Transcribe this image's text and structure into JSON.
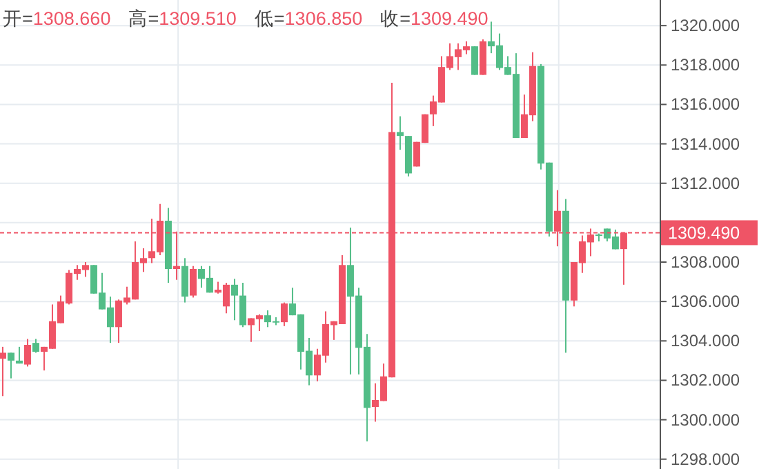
{
  "chart_data": {
    "type": "candlestick",
    "categories": [
      null,
      null,
      null,
      null,
      null,
      null,
      null,
      null,
      null,
      null,
      null,
      null,
      null,
      null,
      null,
      null,
      null,
      null,
      null,
      null,
      null,
      null,
      null,
      null,
      null,
      null,
      null,
      null,
      null,
      null,
      null,
      null,
      null,
      null,
      null,
      null,
      null,
      null,
      null,
      null,
      null,
      null,
      null,
      null,
      null,
      null,
      null,
      null,
      null,
      null,
      null,
      null,
      null,
      null,
      null,
      null,
      null,
      null,
      null,
      null,
      null,
      null,
      null,
      null,
      null,
      null,
      null,
      null,
      null,
      null,
      null,
      null,
      null,
      null,
      null,
      null
    ],
    "ohlc": [
      [
        1303.1,
        1303.7,
        1301.2,
        1303.4
      ],
      [
        1303.4,
        1303.4,
        1302.1,
        1303.0
      ],
      [
        1303.0,
        1303.7,
        1302.85,
        1302.85
      ],
      [
        1302.8,
        1304.1,
        1302.7,
        1303.8
      ],
      [
        1303.9,
        1304.1,
        1303.4,
        1303.45
      ],
      [
        1303.45,
        1303.7,
        1302.5,
        1303.7
      ],
      [
        1303.6,
        1305.85,
        1303.6,
        1305.0
      ],
      [
        1304.9,
        1306.3,
        1304.9,
        1306.0
      ],
      [
        1305.9,
        1307.6,
        1305.85,
        1307.45
      ],
      [
        1307.4,
        1307.85,
        1307.1,
        1307.65
      ],
      [
        1307.6,
        1308.0,
        1307.25,
        1307.85
      ],
      [
        1307.85,
        1307.85,
        1306.4,
        1306.4
      ],
      [
        1306.45,
        1307.45,
        1305.6,
        1305.6
      ],
      [
        1305.7,
        1306.25,
        1303.9,
        1304.7
      ],
      [
        1304.7,
        1306.1,
        1303.9,
        1306.05
      ],
      [
        1305.95,
        1306.75,
        1305.85,
        1306.2
      ],
      [
        1306.1,
        1309.05,
        1306.1,
        1308.0
      ],
      [
        1307.95,
        1308.7,
        1307.5,
        1308.2
      ],
      [
        1308.2,
        1310.2,
        1307.95,
        1308.55
      ],
      [
        1308.5,
        1310.95,
        1308.35,
        1310.1
      ],
      [
        1310.1,
        1310.75,
        1306.95,
        1307.65
      ],
      [
        1307.65,
        1309.55,
        1307.1,
        1307.8
      ],
      [
        1307.8,
        1308.2,
        1305.95,
        1306.25
      ],
      [
        1306.3,
        1307.8,
        1306.2,
        1307.65
      ],
      [
        1307.65,
        1307.8,
        1306.7,
        1307.15
      ],
      [
        1307.2,
        1307.8,
        1306.45,
        1306.45
      ],
      [
        1306.45,
        1307.0,
        1306.4,
        1306.6
      ],
      [
        1305.75,
        1306.95,
        1305.4,
        1306.85
      ],
      [
        1306.85,
        1307.15,
        1305.05,
        1306.3
      ],
      [
        1306.3,
        1306.95,
        1304.7,
        1304.8
      ],
      [
        1304.8,
        1305.15,
        1303.95,
        1305.15
      ],
      [
        1305.1,
        1305.35,
        1304.5,
        1305.3
      ],
      [
        1305.3,
        1305.55,
        1304.7,
        1304.95
      ],
      [
        1305.0,
        1305.2,
        1304.8,
        1304.95
      ],
      [
        1304.95,
        1305.95,
        1304.75,
        1305.9
      ],
      [
        1305.9,
        1306.7,
        1305.3,
        1305.3
      ],
      [
        1305.35,
        1305.35,
        1302.55,
        1303.45
      ],
      [
        1303.5,
        1304.15,
        1301.75,
        1302.25
      ],
      [
        1302.25,
        1303.6,
        1301.95,
        1303.3
      ],
      [
        1303.25,
        1305.5,
        1302.9,
        1304.85
      ],
      [
        1304.8,
        1305.0,
        1304.05,
        1305.0
      ],
      [
        1304.85,
        1308.35,
        1304.85,
        1307.85
      ],
      [
        1307.85,
        1309.75,
        1302.3,
        1306.25
      ],
      [
        1306.3,
        1306.7,
        1302.3,
        1303.65
      ],
      [
        1303.7,
        1304.35,
        1298.9,
        1300.6
      ],
      [
        1300.65,
        1301.85,
        1299.9,
        1301.0
      ],
      [
        1300.95,
        1302.85,
        1300.95,
        1302.2
      ],
      [
        1302.15,
        1317.1,
        1302.15,
        1314.6
      ],
      [
        1314.6,
        1315.4,
        1313.7,
        1314.4
      ],
      [
        1314.4,
        1314.4,
        1312.35,
        1312.5
      ],
      [
        1312.85,
        1314.1,
        1312.85,
        1314.1
      ],
      [
        1314.05,
        1315.5,
        1314.05,
        1315.5
      ],
      [
        1315.5,
        1316.45,
        1314.9,
        1316.15
      ],
      [
        1316.1,
        1318.45,
        1316.1,
        1317.9
      ],
      [
        1317.85,
        1319.1,
        1317.75,
        1318.45
      ],
      [
        1318.4,
        1319.1,
        1317.75,
        1318.8
      ],
      [
        1318.75,
        1319.2,
        1318.55,
        1318.95
      ],
      [
        1318.95,
        1318.95,
        1317.5,
        1317.5
      ],
      [
        1317.5,
        1319.3,
        1317.5,
        1319.2
      ],
      [
        1319.2,
        1320.2,
        1318.6,
        1318.95
      ],
      [
        1319.0,
        1319.6,
        1317.75,
        1317.85
      ],
      [
        1317.9,
        1318.45,
        1317.5,
        1317.5
      ],
      [
        1317.55,
        1318.6,
        1314.3,
        1314.3
      ],
      [
        1314.3,
        1316.5,
        1314.3,
        1315.5
      ],
      [
        1315.45,
        1318.65,
        1315.15,
        1317.95
      ],
      [
        1317.95,
        1318.05,
        1312.7,
        1313.0
      ],
      [
        1313.05,
        1313.05,
        1309.3,
        1309.55
      ],
      [
        1309.55,
        1311.65,
        1308.8,
        1310.6
      ],
      [
        1310.6,
        1311.2,
        1303.4,
        1306.05
      ],
      [
        1306.05,
        1308.0,
        1305.75,
        1308.0
      ],
      [
        1307.95,
        1309.35,
        1307.45,
        1309.05
      ],
      [
        1309.0,
        1309.7,
        1308.3,
        1309.4
      ],
      [
        1309.4,
        1309.45,
        1309.05,
        1309.35
      ],
      [
        1309.7,
        1309.7,
        1309.05,
        1309.2
      ],
      [
        1309.3,
        1309.65,
        1308.65,
        1308.65
      ],
      [
        1308.66,
        1309.51,
        1306.85,
        1309.49
      ]
    ],
    "colors": [
      "#ef5466",
      "#52bd87",
      "#52bd87",
      "#ef5466",
      "#52bd87",
      "#ef5466",
      "#ef5466",
      "#ef5466",
      "#ef5466",
      "#ef5466",
      "#ef5466",
      "#52bd87",
      "#52bd87",
      "#52bd87",
      "#ef5466",
      "#ef5466",
      "#ef5466",
      "#ef5466",
      "#ef5466",
      "#ef5466",
      "#52bd87",
      "#ef5466",
      "#52bd87",
      "#ef5466",
      "#52bd87",
      "#52bd87",
      "#ef5466",
      "#ef5466",
      "#52bd87",
      "#52bd87",
      "#ef5466",
      "#ef5466",
      "#52bd87",
      "#52bd87",
      "#ef5466",
      "#52bd87",
      "#52bd87",
      "#52bd87",
      "#ef5466",
      "#ef5466",
      "#ef5466",
      "#ef5466",
      "#52bd87",
      "#52bd87",
      "#52bd87",
      "#ef5466",
      "#ef5466",
      "#ef5466",
      "#52bd87",
      "#52bd87",
      "#ef5466",
      "#ef5466",
      "#ef5466",
      "#ef5466",
      "#ef5466",
      "#ef5466",
      "#ef5466",
      "#52bd87",
      "#ef5466",
      "#52bd87",
      "#52bd87",
      "#52bd87",
      "#52bd87",
      "#ef5466",
      "#ef5466",
      "#52bd87",
      "#52bd87",
      "#ef5466",
      "#52bd87",
      "#ef5466",
      "#ef5466",
      "#ef5466",
      "#52bd87",
      "#52bd87",
      "#52bd87",
      "#ef5466"
    ],
    "ylim": [
      1297.5,
      1321.3
    ],
    "yticks": [
      {
        "value": 1298,
        "label": "1298.000"
      },
      {
        "value": 1300,
        "label": "1300.000"
      },
      {
        "value": 1302,
        "label": "1302.000"
      },
      {
        "value": 1304,
        "label": "1304.000"
      },
      {
        "value": 1306,
        "label": "1306.000"
      },
      {
        "value": 1308,
        "label": "1308.000"
      },
      {
        "value": 1310,
        "label": null
      },
      {
        "value": 1312,
        "label": "1312.000"
      },
      {
        "value": 1314,
        "label": "1314.000"
      },
      {
        "value": 1316,
        "label": "1316.000"
      },
      {
        "value": 1318,
        "label": "1318.000"
      },
      {
        "value": 1320,
        "label": "1320.000"
      }
    ],
    "grid": true,
    "ref_lines": [
      {
        "axis": "y",
        "value": 1309.49,
        "label": "1309.490",
        "color": "#ef5466",
        "line_style": "dashed"
      }
    ],
    "annotations": [
      "开=1308.660",
      "高=1309.510",
      "低=1306.850",
      "收=1309.490"
    ]
  }
}
